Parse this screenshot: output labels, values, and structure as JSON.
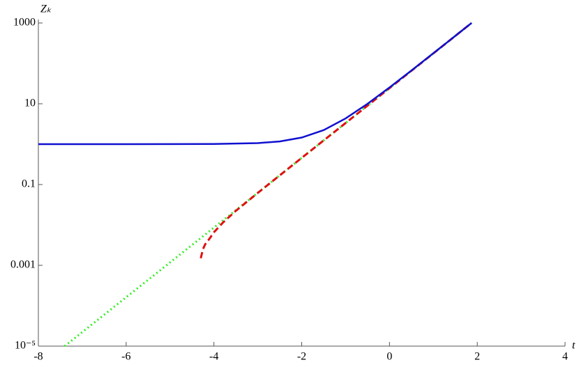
{
  "chart_data": {
    "type": "line",
    "log_y": true,
    "xlabel": "t",
    "ylabel": "Zₖ",
    "xlim": [
      -8,
      4
    ],
    "xticks": [
      -8,
      -6,
      -4,
      -2,
      0,
      2,
      4
    ],
    "ylim": [
      1e-05,
      1000
    ],
    "yticks": [
      {
        "value": 1e-05,
        "label": "10⁻⁵"
      },
      0.001,
      0.1,
      10,
      1000
    ],
    "series": [
      {
        "color": "#33ee22",
        "style": "dotted",
        "x": [
          -7.4,
          1.87
        ],
        "values": [
          1e-05,
          1000
        ]
      },
      {
        "color": "#e01010",
        "style": "dashed",
        "x": [
          -4.3,
          -4.25,
          -4.2,
          -4.1,
          -4.0,
          -3.8,
          -3.5,
          -3,
          -2,
          -1,
          0,
          1,
          1.87
        ],
        "values": [
          0.0015,
          0.0025,
          0.0033,
          0.0046,
          0.0066,
          0.0113,
          0.0224,
          0.062,
          0.457,
          3.33,
          24.3,
          177,
          1000
        ]
      },
      {
        "color": "#1010d0",
        "style": "solid",
        "x": [
          -8,
          -6,
          -4,
          -3,
          -2.5,
          -2,
          -1.5,
          -1,
          -0.5,
          0,
          0.5,
          1,
          1.5,
          1.87
        ],
        "values": [
          1.0,
          1.0002,
          1.009,
          1.063,
          1.169,
          1.457,
          2.234,
          4.33,
          10.0,
          25.3,
          66.7,
          178.4,
          480,
          1001
        ]
      }
    ]
  }
}
